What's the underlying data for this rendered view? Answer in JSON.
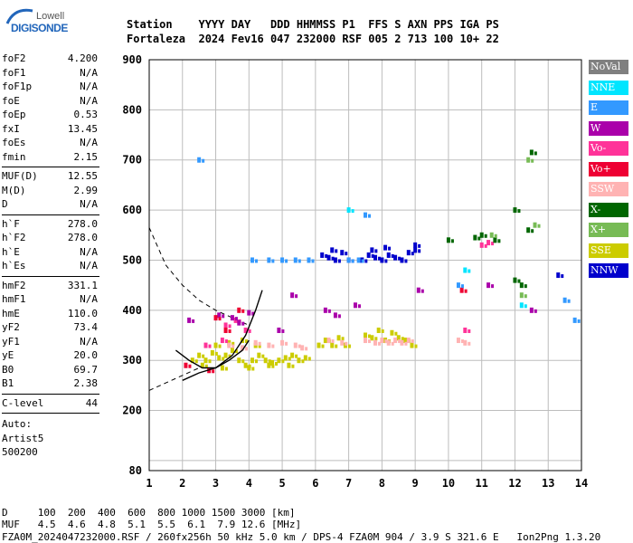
{
  "brand": {
    "top": "Lowell",
    "main": "DIGISONDE"
  },
  "header": {
    "line1": "Station    YYYY DAY   DDD HHMMSS P1  FFS S AXN PPS IGA PS",
    "line2": "Fortaleza  2024 Fev16 047 232000 RSF 005 2 713 100 10+ 22"
  },
  "params": {
    "group1": [
      {
        "k": "foF2",
        "v": "4.200"
      },
      {
        "k": "foF1",
        "v": "N/A"
      },
      {
        "k": "foF1p",
        "v": "N/A"
      },
      {
        "k": "foE",
        "v": "N/A"
      },
      {
        "k": "foEp",
        "v": "0.53"
      },
      {
        "k": "fxI",
        "v": "13.45"
      },
      {
        "k": "foEs",
        "v": "N/A"
      },
      {
        "k": "fmin",
        "v": "2.15"
      }
    ],
    "group2": [
      {
        "k": "MUF(D)",
        "v": "12.55"
      },
      {
        "k": "M(D)",
        "v": "2.99"
      },
      {
        "k": "D",
        "v": "N/A"
      }
    ],
    "group3": [
      {
        "k": "h`F",
        "v": "278.0"
      },
      {
        "k": "h`F2",
        "v": "278.0"
      },
      {
        "k": "h`E",
        "v": "N/A"
      },
      {
        "k": "h`Es",
        "v": "N/A"
      }
    ],
    "group4": [
      {
        "k": "hmF2",
        "v": "331.1"
      },
      {
        "k": "hmF1",
        "v": "N/A"
      },
      {
        "k": "hmE",
        "v": "110.0"
      },
      {
        "k": "yF2",
        "v": "73.4"
      },
      {
        "k": "yF1",
        "v": "N/A"
      },
      {
        "k": "yE",
        "v": "20.0"
      },
      {
        "k": "B0",
        "v": "69.7"
      },
      {
        "k": "B1",
        "v": "2.38"
      }
    ],
    "group5": [
      {
        "k": "C-level",
        "v": "44"
      }
    ],
    "notes": [
      "Auto:",
      "Artist5",
      "500200"
    ]
  },
  "legend": [
    {
      "label": "NoVal",
      "color": "#808080"
    },
    {
      "label": "NNE",
      "color": "#00e5ff"
    },
    {
      "label": "E",
      "color": "#3399ff"
    },
    {
      "label": "W",
      "color": "#aa00aa"
    },
    {
      "label": "Vo-",
      "color": "#ff3399"
    },
    {
      "label": "Vo+",
      "color": "#ee0033"
    },
    {
      "label": "SSW",
      "color": "#ffb3b3"
    },
    {
      "label": "X-",
      "color": "#006600"
    },
    {
      "label": "X+",
      "color": "#77bb55"
    },
    {
      "label": "SSE",
      "color": "#cccc00"
    },
    {
      "label": "NNW",
      "color": "#0000cc"
    }
  ],
  "bottom": {
    "d_line": "D     100  200  400  600  800 1000 1500 3000 [km]",
    "muf_line": "MUF   4.5  4.6  4.8  5.1  5.5  6.1  7.9 12.6 [MHz]",
    "footer": "FZA0M_2024047232000.RSF / 260fx256h 50 kHz 5.0 km / DPS-4 FZA0M 904 / 3.9 S 321.6 E   Ion2Png 1.3.20"
  },
  "chart_data": {
    "type": "scatter",
    "xlim": [
      1,
      14
    ],
    "ylim": [
      80,
      900
    ],
    "x_ticks": [
      1,
      2,
      3,
      4,
      5,
      6,
      7,
      8,
      9,
      10,
      11,
      12,
      13,
      14
    ],
    "y_ticks": [
      100,
      200,
      300,
      400,
      500,
      600,
      700,
      800,
      900
    ],
    "y_tick_labels": [
      "200",
      "300",
      "400",
      "500",
      "600",
      "700",
      "800",
      "900"
    ],
    "x_tick_labels": [
      "1",
      "2",
      "3",
      "4",
      "5",
      "6",
      "7",
      "8",
      "9",
      "10",
      "11",
      "12",
      "13",
      "14"
    ],
    "y_bottom_label": "80",
    "grid": true,
    "series": [
      {
        "name": "SSE",
        "color": "#cccc00",
        "points": [
          [
            2.3,
            300
          ],
          [
            2.5,
            310
          ],
          [
            2.7,
            300
          ],
          [
            2.9,
            315
          ],
          [
            3.1,
            305
          ],
          [
            3.3,
            310
          ],
          [
            3.5,
            320
          ],
          [
            3.7,
            300
          ],
          [
            3.9,
            290
          ],
          [
            4.1,
            300
          ],
          [
            4.3,
            310
          ],
          [
            4.5,
            300
          ],
          [
            4.7,
            295
          ],
          [
            4.9,
            300
          ],
          [
            5.1,
            305
          ],
          [
            5.3,
            310
          ],
          [
            5.5,
            300
          ],
          [
            5.7,
            305
          ],
          [
            6.1,
            330
          ],
          [
            6.3,
            340
          ],
          [
            6.5,
            330
          ],
          [
            6.7,
            345
          ],
          [
            6.9,
            330
          ],
          [
            7.5,
            350
          ],
          [
            7.7,
            345
          ],
          [
            7.9,
            360
          ],
          [
            8.1,
            340
          ],
          [
            8.3,
            355
          ],
          [
            8.5,
            345
          ],
          [
            8.7,
            340
          ],
          [
            8.9,
            330
          ],
          [
            3.0,
            330
          ],
          [
            3.4,
            335
          ],
          [
            3.8,
            340
          ],
          [
            4.2,
            330
          ],
          [
            2.6,
            290
          ],
          [
            3.2,
            285
          ],
          [
            4.0,
            285
          ],
          [
            4.6,
            290
          ],
          [
            5.2,
            290
          ]
        ]
      },
      {
        "name": "SSW",
        "color": "#ffb3b3",
        "points": [
          [
            3.4,
            330
          ],
          [
            3.8,
            325
          ],
          [
            4.2,
            335
          ],
          [
            4.6,
            330
          ],
          [
            5.0,
            335
          ],
          [
            5.4,
            330
          ],
          [
            5.6,
            325
          ],
          [
            6.4,
            340
          ],
          [
            6.8,
            335
          ],
          [
            7.5,
            340
          ],
          [
            7.8,
            335
          ],
          [
            8.0,
            340
          ],
          [
            8.2,
            335
          ],
          [
            8.4,
            340
          ],
          [
            8.6,
            335
          ],
          [
            8.8,
            340
          ],
          [
            10.3,
            340
          ],
          [
            10.5,
            335
          ]
        ]
      },
      {
        "name": "Vo-",
        "color": "#ff3399",
        "points": [
          [
            3.3,
            370
          ],
          [
            3.6,
            380
          ],
          [
            3.9,
            360
          ],
          [
            3.2,
            340
          ],
          [
            2.7,
            330
          ],
          [
            10.5,
            360
          ],
          [
            11.0,
            530
          ],
          [
            11.2,
            535
          ]
        ]
      },
      {
        "name": "W",
        "color": "#aa00aa",
        "points": [
          [
            3.1,
            390
          ],
          [
            3.5,
            385
          ],
          [
            3.7,
            375
          ],
          [
            4.0,
            395
          ],
          [
            2.2,
            380
          ],
          [
            4.9,
            360
          ],
          [
            5.3,
            430
          ],
          [
            6.3,
            400
          ],
          [
            6.6,
            390
          ],
          [
            7.2,
            410
          ],
          [
            9.1,
            440
          ],
          [
            11.2,
            450
          ],
          [
            12.5,
            400
          ]
        ]
      },
      {
        "name": "Vo+",
        "color": "#ee0033",
        "points": [
          [
            2.1,
            290
          ],
          [
            2.8,
            280
          ],
          [
            3.3,
            360
          ],
          [
            3.7,
            400
          ],
          [
            3.0,
            385
          ],
          [
            10.4,
            440
          ]
        ]
      },
      {
        "name": "NNW",
        "color": "#0000cc",
        "points": [
          [
            6.2,
            510
          ],
          [
            6.4,
            505
          ],
          [
            6.6,
            500
          ],
          [
            6.8,
            515
          ],
          [
            7.0,
            500
          ],
          [
            7.4,
            500
          ],
          [
            7.6,
            510
          ],
          [
            7.8,
            505
          ],
          [
            8.0,
            500
          ],
          [
            8.2,
            510
          ],
          [
            8.4,
            505
          ],
          [
            8.6,
            500
          ],
          [
            8.8,
            515
          ],
          [
            9.0,
            520
          ],
          [
            9.0,
            530
          ],
          [
            8.1,
            525
          ],
          [
            7.7,
            520
          ],
          [
            6.5,
            520
          ],
          [
            13.3,
            470
          ]
        ]
      },
      {
        "name": "E",
        "color": "#3399ff",
        "points": [
          [
            4.1,
            500
          ],
          [
            4.6,
            500
          ],
          [
            5.0,
            500
          ],
          [
            5.4,
            500
          ],
          [
            5.8,
            500
          ],
          [
            7.0,
            500
          ],
          [
            7.3,
            500
          ],
          [
            7.5,
            590
          ],
          [
            10.3,
            450
          ],
          [
            2.5,
            700
          ],
          [
            13.5,
            420
          ],
          [
            13.8,
            380
          ]
        ]
      },
      {
        "name": "NNE",
        "color": "#00e5ff",
        "points": [
          [
            7.0,
            600
          ],
          [
            10.5,
            480
          ],
          [
            12.2,
            410
          ]
        ]
      },
      {
        "name": "X-",
        "color": "#006600",
        "points": [
          [
            10.0,
            540
          ],
          [
            10.8,
            545
          ],
          [
            11.0,
            550
          ],
          [
            11.4,
            540
          ],
          [
            12.0,
            600
          ],
          [
            12.4,
            560
          ],
          [
            12.2,
            450
          ],
          [
            12.0,
            460
          ],
          [
            12.5,
            715
          ]
        ]
      },
      {
        "name": "X+",
        "color": "#77bb55",
        "points": [
          [
            11.3,
            550
          ],
          [
            12.6,
            570
          ],
          [
            12.4,
            700
          ],
          [
            12.2,
            430
          ]
        ]
      }
    ],
    "profile_curve": [
      [
        2.0,
        260
      ],
      [
        2.5,
        275
      ],
      [
        3.0,
        285
      ],
      [
        3.5,
        310
      ],
      [
        3.9,
        350
      ],
      [
        4.2,
        400
      ],
      [
        4.4,
        440
      ]
    ],
    "trace_curve": [
      [
        1.8,
        320
      ],
      [
        2.2,
        300
      ],
      [
        2.6,
        285
      ],
      [
        3.0,
        285
      ],
      [
        3.4,
        300
      ],
      [
        3.8,
        320
      ],
      [
        4.0,
        340
      ]
    ],
    "dashed_curve_upper": [
      [
        1.0,
        565
      ],
      [
        1.5,
        490
      ],
      [
        2.0,
        450
      ],
      [
        2.5,
        420
      ],
      [
        3.0,
        400
      ],
      [
        3.5,
        385
      ],
      [
        4.0,
        370
      ]
    ],
    "dashed_curve_lower": [
      [
        1.0,
        240
      ],
      [
        1.5,
        255
      ],
      [
        2.0,
        270
      ],
      [
        2.5,
        285
      ]
    ]
  }
}
